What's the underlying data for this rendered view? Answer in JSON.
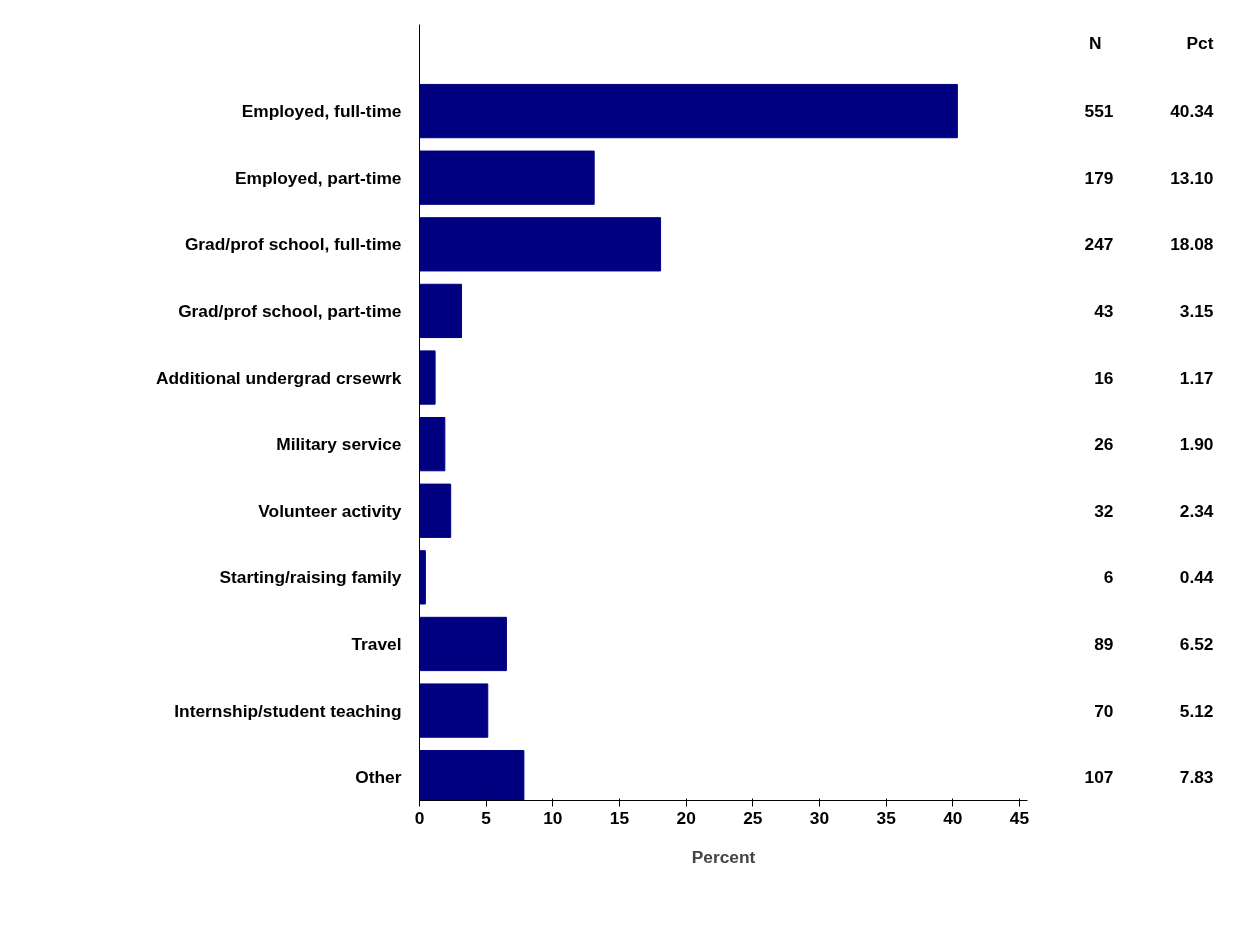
{
  "chart_data": {
    "type": "bar",
    "orientation": "horizontal",
    "xlabel": "Percent",
    "categories": [
      "Employed, full-time",
      "Employed, part-time",
      "Grad/prof school, full-time",
      "Grad/prof school, part-time",
      "Additional undergrad crsewrk",
      "Military service",
      "Volunteer activity",
      "Starting/raising family",
      "Travel",
      "Internship/student teaching",
      "Other"
    ],
    "values": [
      40.34,
      13.1,
      18.08,
      3.15,
      1.17,
      1.9,
      2.34,
      0.44,
      6.52,
      5.12,
      7.83
    ],
    "value_labels": [
      "40.34",
      "13.10",
      "18.08",
      "3.15",
      "1.17",
      "1.90",
      "2.34",
      "0.44",
      "6.52",
      "5.12",
      "7.83"
    ],
    "color": "#000080",
    "xlim": [
      0,
      45.6
    ],
    "xticks": [
      0,
      5,
      10,
      15,
      20,
      25,
      30,
      35,
      40,
      45
    ],
    "annotations": [
      "N",
      "Pct",
      "551",
      "179",
      "247",
      "43",
      "16",
      "26",
      "32",
      "6",
      "89",
      "70",
      "107"
    ]
  }
}
